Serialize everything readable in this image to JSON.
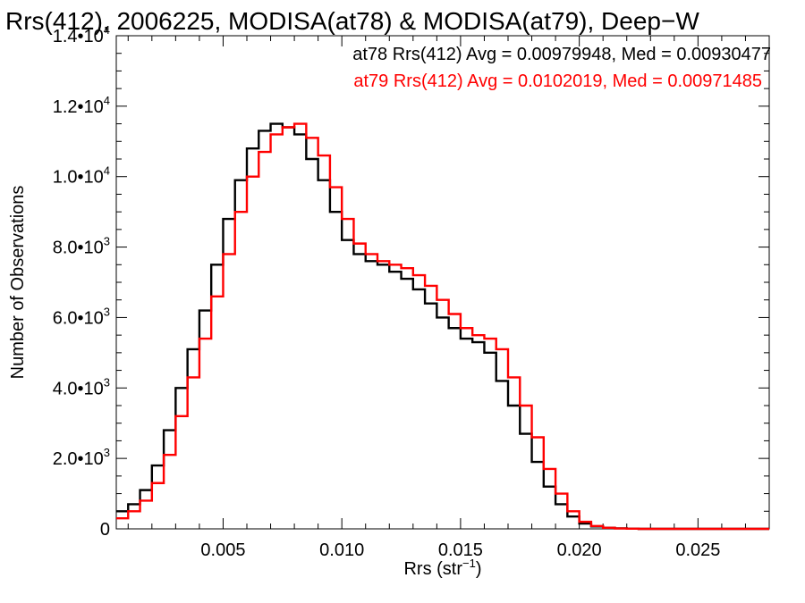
{
  "chart_data": {
    "type": "line",
    "title": "Rrs(412), 2006225, MODISA(at78) & MODISA(at79), Deep−W",
    "xlabel": "Rrs (str",
    "xlabel_sup": "−1",
    "xlabel_close": ")",
    "ylabel": "Number of Observations",
    "xlim": [
      0.0005,
      0.028
    ],
    "ylim": [
      0,
      14000
    ],
    "x_ticks": [
      {
        "value": 0.005,
        "label": "0.005"
      },
      {
        "value": 0.01,
        "label": "0.010"
      },
      {
        "value": 0.015,
        "label": "0.015"
      },
      {
        "value": 0.02,
        "label": "0.020"
      },
      {
        "value": 0.025,
        "label": "0.025"
      }
    ],
    "y_ticks": [
      {
        "value": 0,
        "mant": "0",
        "exp": ""
      },
      {
        "value": 2000,
        "mant": "2.0•10",
        "exp": "3"
      },
      {
        "value": 4000,
        "mant": "4.0•10",
        "exp": "3"
      },
      {
        "value": 6000,
        "mant": "6.0•10",
        "exp": "3"
      },
      {
        "value": 8000,
        "mant": "8.0•10",
        "exp": "3"
      },
      {
        "value": 10000,
        "mant": "1.0•10",
        "exp": "4"
      },
      {
        "value": 12000,
        "mant": "1.2•10",
        "exp": "4"
      },
      {
        "value": 14000,
        "mant": "1.4•10",
        "exp": "4"
      }
    ],
    "legend": "top-right",
    "grid": false,
    "series": [
      {
        "name": "at78 Rrs(412) Avg = 0.00979948, Med = 0.00930477",
        "color": "#000000",
        "x": [
          0.0005,
          0.001,
          0.0015,
          0.002,
          0.0025,
          0.003,
          0.0035,
          0.004,
          0.0045,
          0.005,
          0.0055,
          0.006,
          0.0065,
          0.007,
          0.0075,
          0.008,
          0.0085,
          0.009,
          0.0095,
          0.01,
          0.0105,
          0.011,
          0.0115,
          0.012,
          0.0125,
          0.013,
          0.0135,
          0.014,
          0.0145,
          0.015,
          0.0155,
          0.016,
          0.0165,
          0.017,
          0.0175,
          0.018,
          0.0185,
          0.019,
          0.0195,
          0.02,
          0.0205,
          0.021,
          0.0215,
          0.022,
          0.0225,
          0.023,
          0.024,
          0.025,
          0.026,
          0.027,
          0.028
        ],
        "y": [
          500,
          700,
          1100,
          1800,
          2800,
          4000,
          5100,
          6200,
          7500,
          8800,
          9900,
          10800,
          11300,
          11500,
          11400,
          11200,
          10500,
          9900,
          9000,
          8200,
          7800,
          7600,
          7500,
          7300,
          7100,
          6800,
          6400,
          6000,
          5700,
          5400,
          5300,
          5000,
          4200,
          3500,
          2700,
          1900,
          1200,
          700,
          350,
          150,
          70,
          30,
          15,
          5,
          0,
          0,
          0,
          0,
          0,
          0,
          0
        ]
      },
      {
        "name": "at79 Rrs(412) Avg = 0.0102019, Med = 0.00971485",
        "color": "#ff0000",
        "x": [
          0.0005,
          0.001,
          0.0015,
          0.002,
          0.0025,
          0.003,
          0.0035,
          0.004,
          0.0045,
          0.005,
          0.0055,
          0.006,
          0.0065,
          0.007,
          0.0075,
          0.008,
          0.0085,
          0.009,
          0.0095,
          0.01,
          0.0105,
          0.011,
          0.0115,
          0.012,
          0.0125,
          0.013,
          0.0135,
          0.014,
          0.0145,
          0.015,
          0.0155,
          0.016,
          0.0165,
          0.017,
          0.0175,
          0.018,
          0.0185,
          0.019,
          0.0195,
          0.02,
          0.0205,
          0.021,
          0.0215,
          0.022,
          0.0225,
          0.023,
          0.024,
          0.025,
          0.026,
          0.027,
          0.028
        ],
        "y": [
          300,
          500,
          800,
          1300,
          2100,
          3200,
          4300,
          5400,
          6600,
          7800,
          9000,
          10000,
          10700,
          11200,
          11400,
          11500,
          11100,
          10600,
          9700,
          8800,
          8100,
          7800,
          7600,
          7500,
          7400,
          7200,
          6900,
          6500,
          6100,
          5700,
          5500,
          5400,
          5100,
          4300,
          3500,
          2600,
          1700,
          1000,
          500,
          200,
          80,
          30,
          10,
          5,
          0,
          0,
          0,
          0,
          0,
          0,
          0
        ]
      }
    ]
  }
}
